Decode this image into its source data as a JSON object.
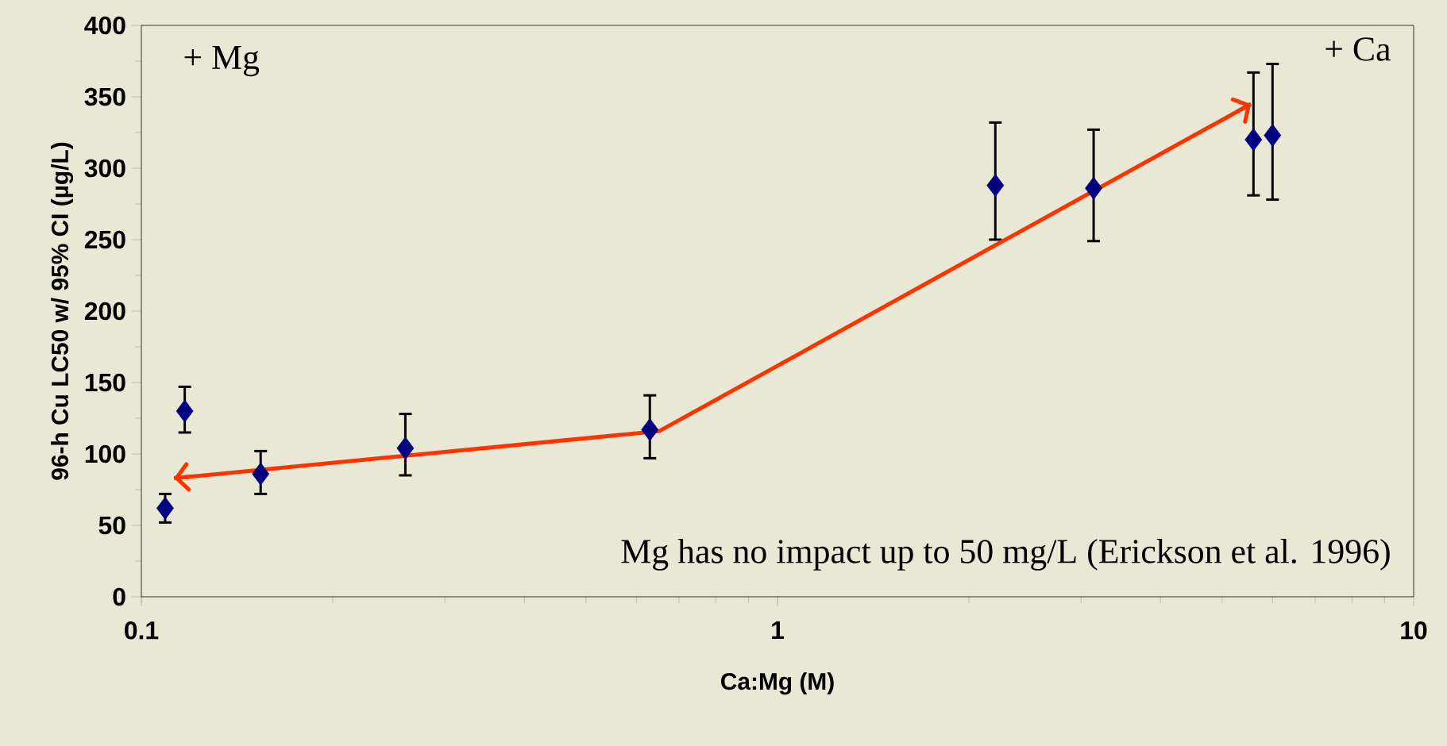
{
  "chart_data": {
    "type": "scatter",
    "xlabel": "Ca:Mg (M)",
    "ylabel": "96-h Cu LC50 w/ 95% CI (µg/L)",
    "log": "x",
    "xlim": [
      0.1,
      10
    ],
    "ylim": [
      0,
      400
    ],
    "xticks": [
      {
        "value": 0.1,
        "label": "0.1"
      },
      {
        "value": 1,
        "label": "1"
      },
      {
        "value": 10,
        "label": "10"
      }
    ],
    "yticks": [
      0,
      50,
      100,
      150,
      200,
      250,
      300,
      350,
      400
    ],
    "marker": "diamond",
    "grid": false,
    "legend": false,
    "series": [
      {
        "color": "#000080",
        "x": [
          0.109,
          0.117,
          0.154,
          0.26,
          0.63,
          2.2,
          3.14,
          5.6,
          6.0
        ],
        "values": [
          62,
          130,
          86,
          104,
          117,
          288,
          286,
          320,
          323
        ],
        "errors": [
          [
            52,
            72
          ],
          [
            115,
            147
          ],
          [
            72,
            102
          ],
          [
            85,
            128
          ],
          [
            97,
            141
          ],
          [
            250,
            332
          ],
          [
            249,
            327
          ],
          [
            281,
            367
          ],
          [
            278,
            373
          ]
        ]
      },
      {
        "type": "line",
        "marker": "none",
        "color": "#ff3300",
        "x": [
          0.1125,
          0.652,
          5.55
        ],
        "values": [
          83,
          116,
          345
        ]
      }
    ],
    "annotations": [
      "+ Mg",
      "+ Ca",
      "Mg has no impact up to 50 mg/L (Erickson et al. 1996)"
    ]
  }
}
